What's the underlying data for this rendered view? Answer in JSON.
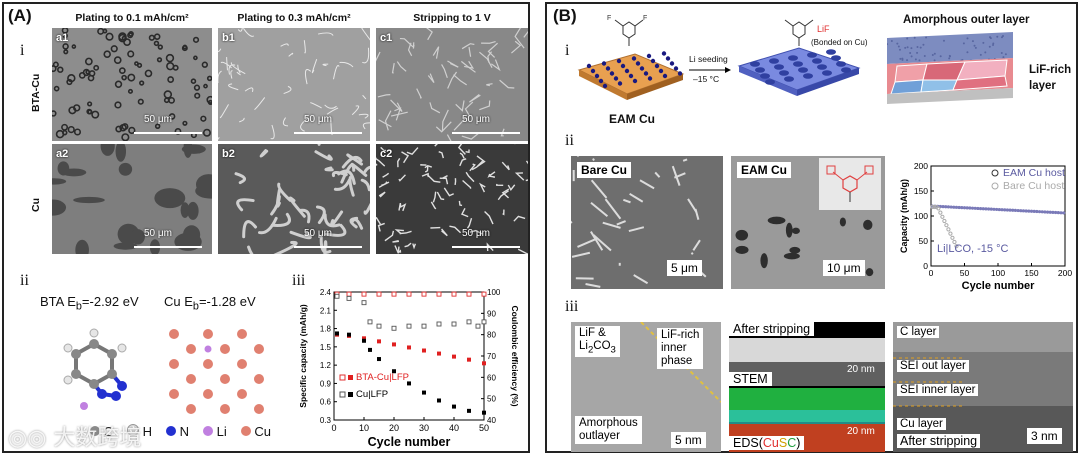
{
  "panelA": {
    "label": "(A)",
    "section_i": "i",
    "section_ii": "ii",
    "section_iii": "iii",
    "col_titles": [
      "Plating to 0.1 mAh/cm²",
      "Plating to 0.3 mAh/cm²",
      "Stripping to 1 V"
    ],
    "row_labels": [
      "BTA-Cu",
      "Cu"
    ],
    "sublabels": [
      "a1",
      "b1",
      "c1",
      "a2",
      "b2",
      "c2"
    ],
    "scale": "50 μm",
    "bta_energy": "BTA E",
    "bta_energy_sub": "b",
    "bta_energy_val": "=-2.92 eV",
    "cu_energy": "Cu E",
    "cu_energy_sub": "b",
    "cu_energy_val": "=-1.28 eV",
    "legend_atoms": [
      "C",
      "H",
      "N",
      "Li",
      "Cu"
    ],
    "atom_colors": {
      "C": "#8a8a8a",
      "H": "#e6e6e6",
      "N": "#2230d0",
      "Li": "#c080e0",
      "Cu": "#e08070"
    }
  },
  "chart_data": {
    "type": "scatter",
    "xlabel": "Cycle number",
    "ylabel": "Specific capacity (mAh/g)",
    "y2label": "Coulombic efficiency (%)",
    "xlim": [
      0,
      50
    ],
    "ylim": [
      0.3,
      2.4
    ],
    "y2lim": [
      40,
      100
    ],
    "xticks": [
      0,
      10,
      20,
      30,
      40,
      50
    ],
    "yticks": [
      "0.3",
      "0.6",
      "0.9",
      "1.2",
      "1.5",
      "1.8",
      "2.1",
      "2.4"
    ],
    "y2ticks": [
      "40",
      "50",
      "60",
      "70",
      "80",
      "90",
      "100"
    ],
    "series": [
      {
        "name": "BTA-Cu|LFP",
        "marker": "open",
        "axis": "y2",
        "color": "#e03030",
        "x": [
          1,
          5,
          10,
          15,
          20,
          25,
          30,
          35,
          40,
          45,
          50
        ],
        "values": [
          99,
          99,
          99,
          99,
          99,
          99,
          99,
          99,
          99,
          99,
          99
        ]
      },
      {
        "name": "BTA-Cu|LFP",
        "marker": "filled",
        "axis": "y",
        "color": "#e02020",
        "x": [
          1,
          5,
          10,
          15,
          20,
          25,
          30,
          35,
          40,
          45,
          50
        ],
        "values": [
          1.7,
          1.68,
          1.64,
          1.59,
          1.54,
          1.49,
          1.44,
          1.39,
          1.34,
          1.29,
          1.23
        ]
      },
      {
        "name": "Cu|LFP",
        "marker": "open",
        "axis": "y2",
        "color": "#555555",
        "x": [
          1,
          5,
          10,
          12,
          15,
          20,
          25,
          30,
          35,
          40,
          45,
          48,
          50
        ],
        "values": [
          98,
          97,
          95,
          86,
          84,
          83,
          84,
          84,
          85,
          85,
          86,
          84,
          86
        ]
      },
      {
        "name": "Cu|LFP",
        "marker": "filled",
        "axis": "y",
        "color": "#000000",
        "x": [
          1,
          5,
          10,
          12,
          15,
          20,
          25,
          30,
          35,
          40,
          45,
          50
        ],
        "values": [
          1.72,
          1.7,
          1.6,
          1.45,
          1.3,
          1.1,
          0.9,
          0.75,
          0.62,
          0.52,
          0.45,
          0.42
        ]
      }
    ]
  },
  "panelB": {
    "label": "(B)",
    "section_i": "i",
    "section_ii": "ii",
    "section_iii": "iii",
    "li_seeding": "Li seeding",
    "temp": "–15 °C",
    "lif_label": "LiF",
    "bonded": "(Bonded on Cu)",
    "eam_cu": "EAM Cu",
    "amorphous_outer": "Amorphous outer layer",
    "lif_rich": "LiF-rich",
    "layer": "layer",
    "bare_cu": "Bare Cu",
    "eam_cu2": "EAM Cu",
    "scale_5um": "5 μm",
    "scale_10um": "10 μm",
    "cap_legend": [
      "EAM Cu host",
      "Bare Cu host"
    ],
    "cap_note": "Li|LCO, -15 °C",
    "cap_xlabel": "Cycle number",
    "cap_ylabel": "Capacity (mAh/g)",
    "cap_xticks": [
      "0",
      "50",
      "100",
      "150",
      "200"
    ],
    "cap_yticks": [
      "0",
      "50",
      "100",
      "150",
      "200"
    ],
    "iii_left": {
      "lif": "LiF &",
      "li2co3": "Li",
      "li2co3_sub": "2",
      "li2co3_rest": "CO",
      "li2co3_sub2": "3",
      "lif_rich": "LiF-rich",
      "inner": "inner",
      "phase": "phase",
      "amorphous": "Amorphous",
      "outlayer": "outlayer",
      "scale": "5 nm"
    },
    "iii_mid": {
      "after": "After stripping",
      "stem": "STEM",
      "scale1": "20 nm",
      "scale2": "20 nm",
      "eds": "EDS(",
      "cu": "Cu",
      "s": "S",
      "c": "C",
      "close": ")"
    },
    "iii_right": {
      "c_layer": "C layer",
      "sei_out": "SEI out layer",
      "sei_inner": "SEI inner layer",
      "cu_layer": "Cu layer",
      "after": "After stripping",
      "scale": "3 nm"
    }
  },
  "watermark": "大数跨境"
}
